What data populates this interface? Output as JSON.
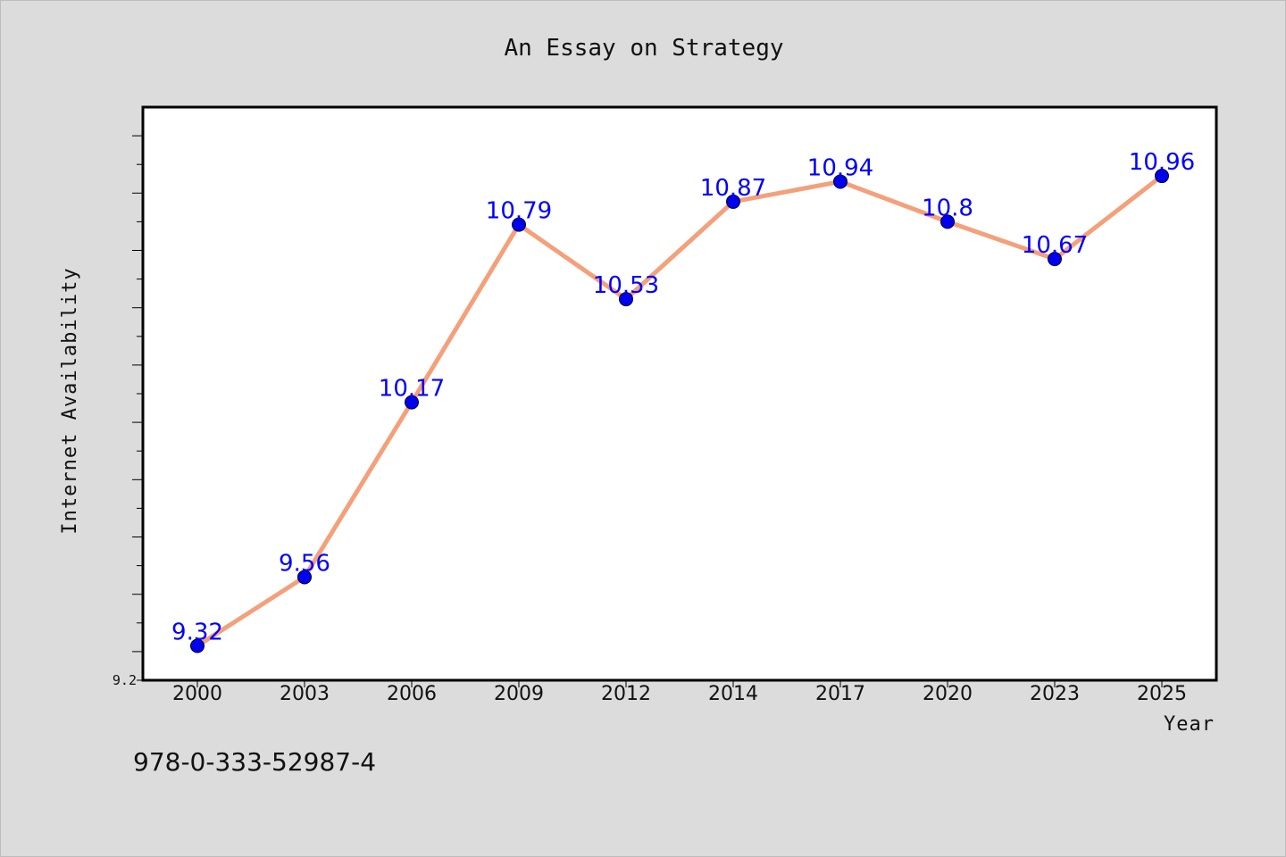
{
  "chart_data": {
    "type": "line",
    "title": "An Essay on Strategy",
    "xlabel": "Year",
    "ylabel": "Internet Availability",
    "categories": [
      "2000",
      "2003",
      "2006",
      "2009",
      "2012",
      "2014",
      "2017",
      "2020",
      "2023",
      "2025"
    ],
    "series": [
      {
        "values": [
          9.32,
          9.56,
          10.17,
          10.79,
          10.53,
          10.87,
          10.94,
          10.8,
          10.67,
          10.96
        ]
      }
    ],
    "data_labels": [
      "9.32",
      "9.56",
      "10.17",
      "10.79",
      "10.53",
      "10.87",
      "10.94",
      "10.8",
      "10.67",
      "10.96"
    ],
    "ylim": [
      9.2,
      11.2
    ],
    "y_min_label": "9.2",
    "y_tick_labels_shown": false,
    "grid": false,
    "legend": "none",
    "line_color": "#f4a07a",
    "marker_color": "#0000ee",
    "data_label_color": "#0000ff",
    "plot_background": "#ffffff",
    "page_background": "#dcdcdc"
  },
  "footnote": "978-0-333-52987-4"
}
